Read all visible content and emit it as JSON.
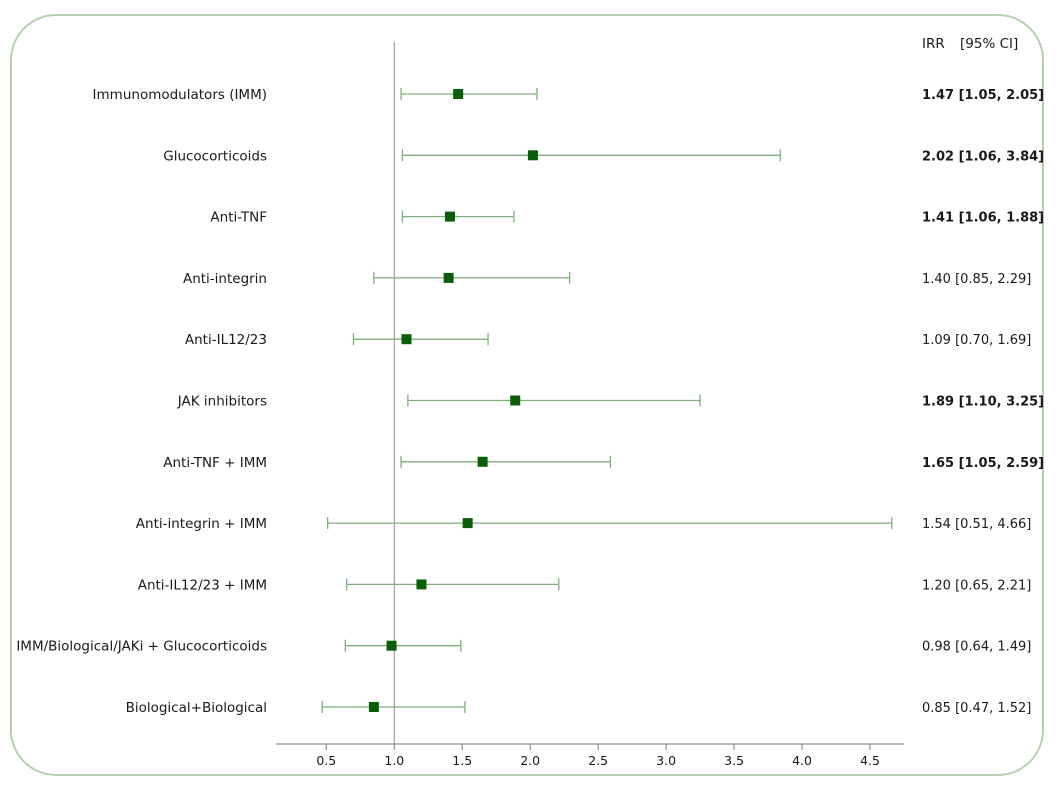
{
  "chart_data": {
    "type": "forest",
    "header": "IRR",
    "header_ci": "[95% CI]",
    "ref_line": 1.0,
    "xlim": [
      0.13,
      4.75
    ],
    "xticks": [
      "0.5",
      "1.0",
      "1.5",
      "2.0",
      "2.5",
      "3.0",
      "3.5",
      "4.0",
      "4.5"
    ],
    "point_color": "#0a5e0a",
    "ci_color": "#7fb07a",
    "rows": [
      {
        "label": "Immunomodulators (IMM)",
        "irr": 1.47,
        "lo": 1.05,
        "hi": 2.05,
        "text": "1.47 [1.05, 2.05]",
        "significant": true
      },
      {
        "label": "Glucocorticoids",
        "irr": 2.02,
        "lo": 1.06,
        "hi": 3.84,
        "text": "2.02 [1.06, 3.84]",
        "significant": true
      },
      {
        "label": "Anti-TNF",
        "irr": 1.41,
        "lo": 1.06,
        "hi": 1.88,
        "text": "1.41 [1.06, 1.88]",
        "significant": true
      },
      {
        "label": "Anti-integrin",
        "irr": 1.4,
        "lo": 0.85,
        "hi": 2.29,
        "text": "1.40 [0.85, 2.29]",
        "significant": false
      },
      {
        "label": "Anti-IL12/23",
        "irr": 1.09,
        "lo": 0.7,
        "hi": 1.69,
        "text": "1.09 [0.70, 1.69]",
        "significant": false
      },
      {
        "label": "JAK inhibitors",
        "irr": 1.89,
        "lo": 1.1,
        "hi": 3.25,
        "text": "1.89 [1.10, 3.25]",
        "significant": true
      },
      {
        "label": "Anti-TNF + IMM",
        "irr": 1.65,
        "lo": 1.05,
        "hi": 2.59,
        "text": "1.65 [1.05, 2.59]",
        "significant": true
      },
      {
        "label": "Anti-integrin + IMM",
        "irr": 1.54,
        "lo": 0.51,
        "hi": 4.66,
        "text": "1.54 [0.51, 4.66]",
        "significant": false
      },
      {
        "label": "Anti-IL12/23 + IMM",
        "irr": 1.2,
        "lo": 0.65,
        "hi": 2.21,
        "text": "1.20 [0.65, 2.21]",
        "significant": false
      },
      {
        "label": "IMM/Biological/JAKi + Glucocorticoids",
        "irr": 0.98,
        "lo": 0.64,
        "hi": 1.49,
        "text": "0.98 [0.64, 1.49]",
        "significant": false
      },
      {
        "label": "Biological+Biological",
        "irr": 0.85,
        "lo": 0.47,
        "hi": 1.52,
        "text": "0.85 [0.47, 1.52]",
        "significant": false
      }
    ]
  }
}
